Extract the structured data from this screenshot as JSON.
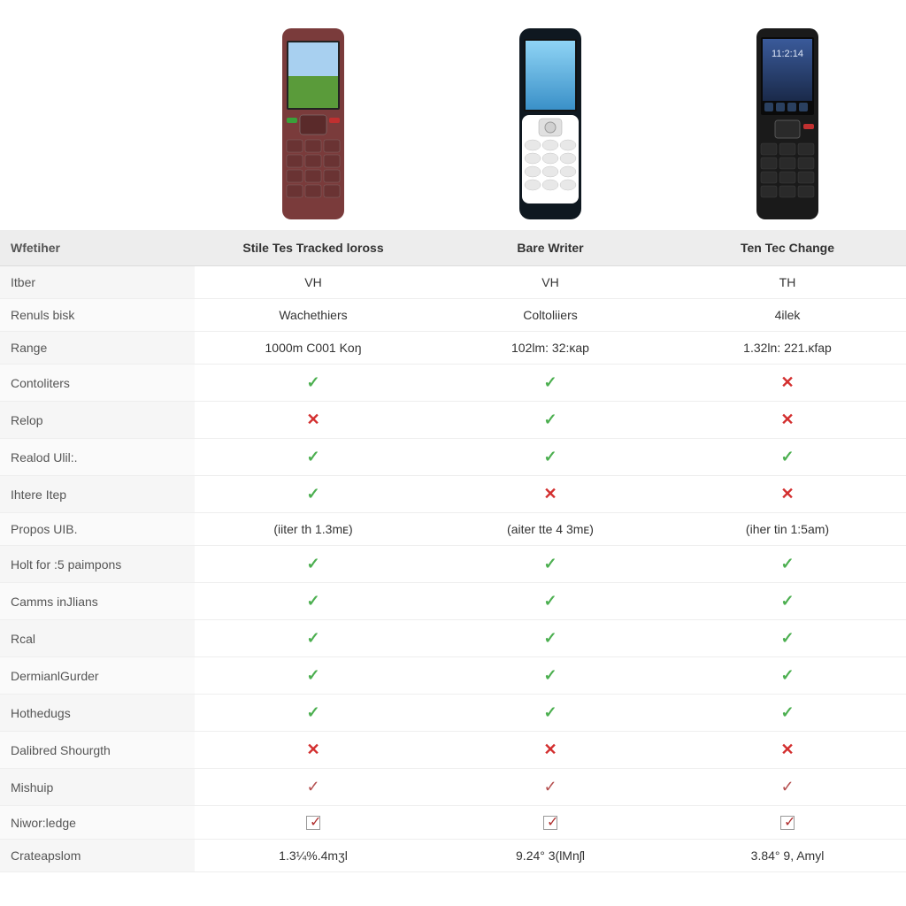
{
  "phones": [
    {
      "body_color": "#7a3b3b",
      "screen_top": "#7db3e8",
      "screen_bottom": "#5a9b3a",
      "accent": "#3aa03a"
    },
    {
      "body_color": "#0f1820",
      "screen_top": "#6fc6f0",
      "screen_bottom": "#4aa0d0",
      "accent": "#e8e8e8",
      "keypad_bg": "#ffffff"
    },
    {
      "body_color": "#1a1a1a",
      "screen_top": "#2a4a7a",
      "screen_bottom": "#1a2a4a",
      "accent": "#404040",
      "time": "11:2:14"
    }
  ],
  "header": {
    "col0": "Wfetiher",
    "col1": "Stile Tes Tracked loross",
    "col2": "Bare Writer",
    "col3": "Ten Tec Change"
  },
  "rows": [
    {
      "label": "Itber",
      "c1": {
        "t": "text",
        "v": "VH"
      },
      "c2": {
        "t": "text",
        "v": "VH"
      },
      "c3": {
        "t": "text",
        "v": "TH"
      }
    },
    {
      "label": "Renuls bisk",
      "c1": {
        "t": "text",
        "v": "Wachethiers"
      },
      "c2": {
        "t": "text",
        "v": "Coltoliiers"
      },
      "c3": {
        "t": "text",
        "v": "4ilek"
      }
    },
    {
      "label": "Range",
      "c1": {
        "t": "text",
        "v": "1000m C001 Koŋ"
      },
      "c2": {
        "t": "text",
        "v": "102lm: 32:ᴋap"
      },
      "c3": {
        "t": "text",
        "v": "1.32ln: 221.ᴋfap"
      }
    },
    {
      "label": "Contoliters",
      "c1": {
        "t": "check"
      },
      "c2": {
        "t": "check"
      },
      "c3": {
        "t": "cross"
      }
    },
    {
      "label": "Relop",
      "c1": {
        "t": "cross"
      },
      "c2": {
        "t": "check"
      },
      "c3": {
        "t": "cross"
      }
    },
    {
      "label": "Realod Ulil:.",
      "c1": {
        "t": "check"
      },
      "c2": {
        "t": "check"
      },
      "c3": {
        "t": "check"
      }
    },
    {
      "label": "Ihtere Itep",
      "c1": {
        "t": "check"
      },
      "c2": {
        "t": "cross"
      },
      "c3": {
        "t": "cross"
      }
    },
    {
      "label": "Propos UIB.",
      "c1": {
        "t": "text",
        "v": "(iiter th 1.3mᴇ)"
      },
      "c2": {
        "t": "text",
        "v": "(aiter tte 4 3mᴇ)"
      },
      "c3": {
        "t": "text",
        "v": "(iher tin 1:5am)"
      }
    },
    {
      "label": "Holt for :5 paimpons",
      "c1": {
        "t": "check"
      },
      "c2": {
        "t": "check"
      },
      "c3": {
        "t": "check"
      }
    },
    {
      "label": "Camms inJlians",
      "c1": {
        "t": "check"
      },
      "c2": {
        "t": "check"
      },
      "c3": {
        "t": "check"
      }
    },
    {
      "label": "Rcal",
      "c1": {
        "t": "check"
      },
      "c2": {
        "t": "check"
      },
      "c3": {
        "t": "check"
      }
    },
    {
      "label": "DermianlGurder",
      "c1": {
        "t": "check"
      },
      "c2": {
        "t": "check"
      },
      "c3": {
        "t": "check"
      }
    },
    {
      "label": "Hothedugs",
      "c1": {
        "t": "check"
      },
      "c2": {
        "t": "check"
      },
      "c3": {
        "t": "check"
      }
    },
    {
      "label": "Dalibred Shourgth",
      "c1": {
        "t": "cross"
      },
      "c2": {
        "t": "cross"
      },
      "c3": {
        "t": "cross"
      }
    },
    {
      "label": "Mishuip",
      "c1": {
        "t": "check-thin"
      },
      "c2": {
        "t": "check-thin"
      },
      "c3": {
        "t": "check-thin"
      }
    },
    {
      "label": "Niwor:ledge",
      "c1": {
        "t": "box"
      },
      "c2": {
        "t": "box"
      },
      "c3": {
        "t": "box"
      }
    },
    {
      "label": "Crateapslom",
      "c1": {
        "t": "text",
        "v": "1.3¼%.4mӡl"
      },
      "c2": {
        "t": "text",
        "v": "9.24° 3(lMnʃl"
      },
      "c3": {
        "t": "text",
        "v": "3.84° 9, Amyl"
      }
    }
  ],
  "colors": {
    "check": "#4CAF50",
    "cross": "#d32f2f",
    "header_bg": "#ededed",
    "row_border": "#eeeeee"
  }
}
